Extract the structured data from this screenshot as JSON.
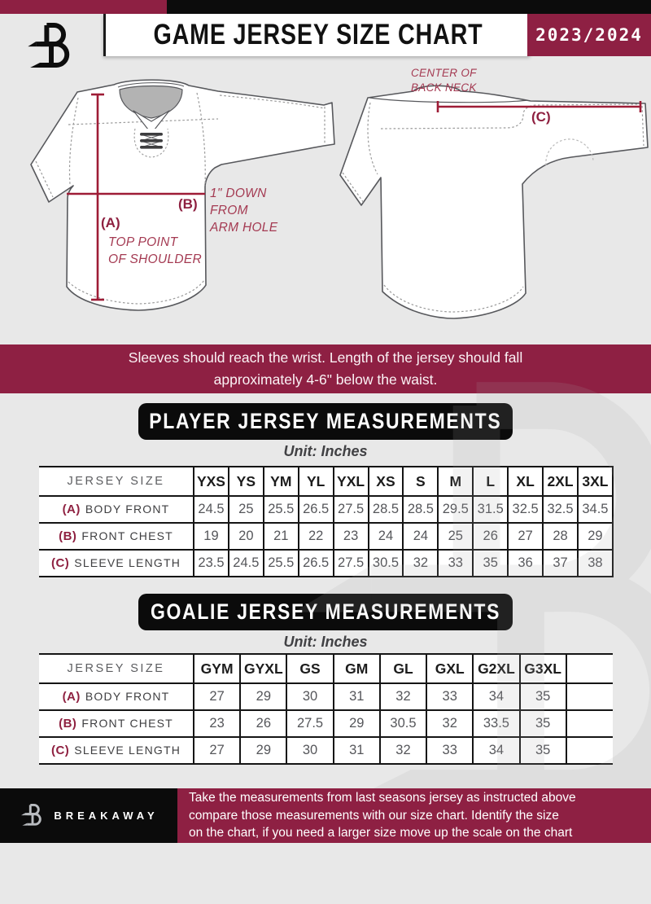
{
  "header": {
    "title": "GAME JERSEY SIZE CHART",
    "season": "2023/2024"
  },
  "annotations": {
    "center_back_neck": "CENTER OF\nBACK NECK",
    "label_a": "(A)",
    "note_a": "TOP POINT\nOF SHOULDER",
    "label_b": "(B)",
    "note_b": "1\" DOWN\nFROM\nARM HOLE",
    "label_c": "(C)"
  },
  "note_banner": "Sleeves should reach the wrist. Length of the jersey should fall\napproximately 4-6\" below the waist.",
  "player_section": {
    "title": "PLAYER JERSEY MEASUREMENTS",
    "unit": "Unit: Inches",
    "table": {
      "size_header": "JERSEY SIZE",
      "sizes": [
        "YXS",
        "YS",
        "YM",
        "YL",
        "YXL",
        "XS",
        "S",
        "M",
        "L",
        "XL",
        "2XL",
        "3XL"
      ],
      "rows": [
        {
          "key": "(A)",
          "label": "BODY FRONT",
          "values": [
            "24.5",
            "25",
            "25.5",
            "26.5",
            "27.5",
            "28.5",
            "28.5",
            "29.5",
            "31.5",
            "32.5",
            "32.5",
            "34.5"
          ]
        },
        {
          "key": "(B)",
          "label": "FRONT CHEST",
          "values": [
            "19",
            "20",
            "21",
            "22",
            "23",
            "24",
            "24",
            "25",
            "26",
            "27",
            "28",
            "29"
          ]
        },
        {
          "key": "(C)",
          "label": "SLEEVE LENGTH",
          "values": [
            "23.5",
            "24.5",
            "25.5",
            "26.5",
            "27.5",
            "30.5",
            "32",
            "33",
            "35",
            "36",
            "37",
            "38"
          ]
        }
      ]
    }
  },
  "goalie_section": {
    "title": "GOALIE JERSEY MEASUREMENTS",
    "unit": "Unit: Inches",
    "table": {
      "size_header": "JERSEY SIZE",
      "sizes": [
        "GYM",
        "GYXL",
        "GS",
        "GM",
        "GL",
        "GXL",
        "G2XL",
        "G3XL",
        ""
      ],
      "rows": [
        {
          "key": "(A)",
          "label": "BODY FRONT",
          "values": [
            "27",
            "29",
            "30",
            "31",
            "32",
            "33",
            "34",
            "35",
            ""
          ]
        },
        {
          "key": "(B)",
          "label": "FRONT CHEST",
          "values": [
            "23",
            "26",
            "27.5",
            "29",
            "30.5",
            "32",
            "33.5",
            "35",
            ""
          ]
        },
        {
          "key": "(C)",
          "label": "SLEEVE LENGTH",
          "values": [
            "27",
            "29",
            "30",
            "31",
            "32",
            "33",
            "34",
            "35",
            ""
          ]
        }
      ]
    }
  },
  "footer": {
    "brand": "BREAKAWAY",
    "text": "Take the measurements from last seasons jersey as instructed above\ncompare those measurements  with our size chart. Identify the size\non the chart, if you need a larger size move up the scale on the chart"
  },
  "colors": {
    "maroon": "#8e2043",
    "black": "#0c0c0c",
    "background": "#e8e8e8",
    "annotation_red": "#9e1c36",
    "table_value_gray": "#55565a"
  }
}
